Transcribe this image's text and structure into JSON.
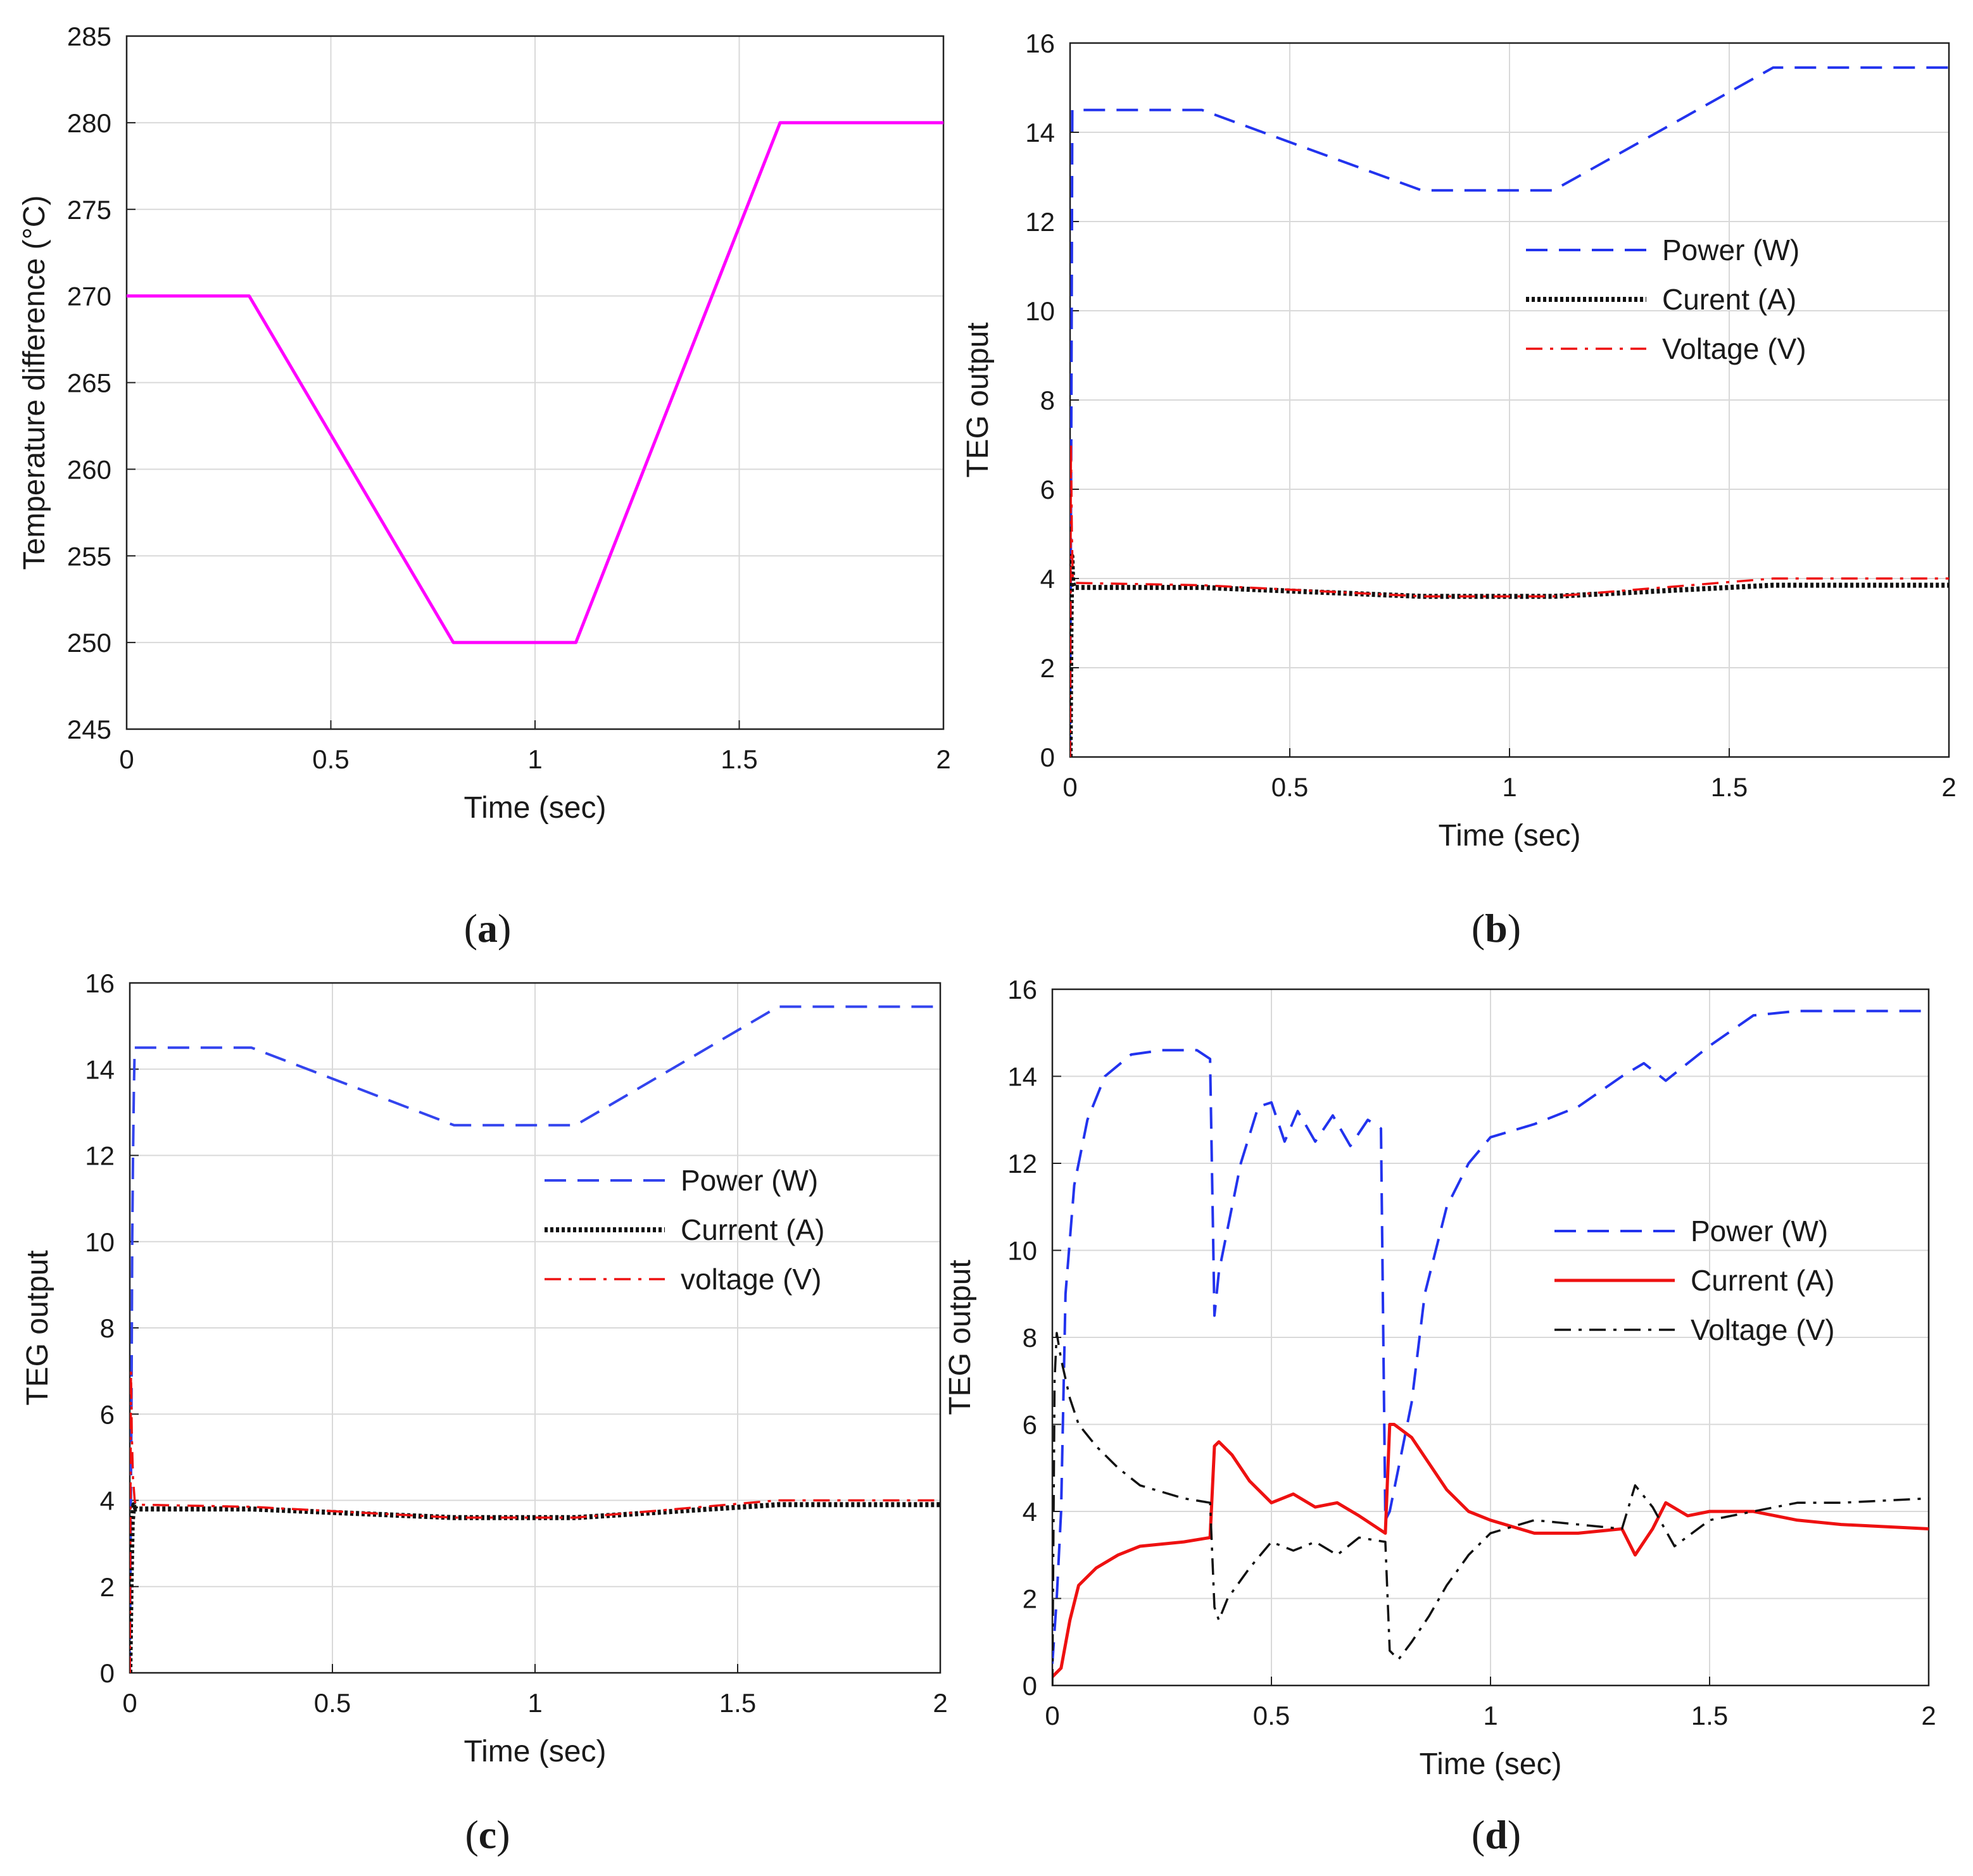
{
  "chart_data": [
    {
      "id": "a",
      "type": "line",
      "caption_letter": "a",
      "title": "",
      "xlabel": "Time (sec)",
      "ylabel": "Temperature difference (°C)",
      "xlim": [
        0,
        2
      ],
      "ylim": [
        245,
        285
      ],
      "xticks": [
        0,
        0.5,
        1,
        1.5,
        2
      ],
      "xtick_labels": [
        "0",
        "0.5",
        "1",
        "1.5",
        "2"
      ],
      "yticks": [
        245,
        250,
        255,
        260,
        265,
        270,
        275,
        280,
        285
      ],
      "ytick_labels": [
        "245",
        "250",
        "255",
        "260",
        "265",
        "270",
        "275",
        "280",
        "285"
      ],
      "grid": true,
      "legend_position": "none",
      "series": [
        {
          "name": "Temperature difference",
          "color": "#ff00ff",
          "style": "solid",
          "x": [
            0,
            0.3,
            0.8,
            1.1,
            1.6,
            2.0
          ],
          "y": [
            270,
            270,
            250,
            250,
            280,
            280
          ]
        }
      ]
    },
    {
      "id": "b",
      "type": "line",
      "caption_letter": "b",
      "title": "",
      "xlabel": "Time (sec)",
      "ylabel": "TEG output",
      "xlim": [
        0,
        2
      ],
      "ylim": [
        0,
        16
      ],
      "xticks": [
        0,
        0.5,
        1,
        1.5,
        2
      ],
      "xtick_labels": [
        "0",
        "0.5",
        "1",
        "1.5",
        "2"
      ],
      "yticks": [
        0,
        2,
        4,
        6,
        8,
        10,
        12,
        14,
        16
      ],
      "ytick_labels": [
        "0",
        "2",
        "4",
        "6",
        "8",
        "10",
        "12",
        "14",
        "16"
      ],
      "grid": true,
      "legend_position": "center-right",
      "series": [
        {
          "name": "Power (W)",
          "color": "#2233ee",
          "style": "dashed",
          "x": [
            0,
            0.003,
            0.005,
            0.01,
            0.3,
            0.8,
            1.1,
            1.6,
            2.0
          ],
          "y": [
            0,
            8,
            14.5,
            14.5,
            14.5,
            12.7,
            12.7,
            15.45,
            15.45
          ]
        },
        {
          "name": "Curent (A)",
          "color": "#111111",
          "style": "dotted",
          "x": [
            0,
            0.002,
            0.004,
            0.006,
            0.01,
            0.3,
            0.8,
            1.1,
            1.6,
            2.0
          ],
          "y": [
            0,
            3,
            4.5,
            3.9,
            3.8,
            3.8,
            3.6,
            3.6,
            3.85,
            3.85
          ]
        },
        {
          "name": "Voltage (V)",
          "color": "#ee1111",
          "style": "dashdot",
          "x": [
            0,
            0.002,
            0.004,
            0.006,
            0.01,
            0.3,
            0.8,
            1.1,
            1.6,
            2.0
          ],
          "y": [
            0,
            7,
            5,
            4,
            3.9,
            3.85,
            3.6,
            3.6,
            4.0,
            4.0
          ]
        }
      ]
    },
    {
      "id": "c",
      "type": "line",
      "caption_letter": "c",
      "title": "",
      "xlabel": "Time (sec)",
      "ylabel": "TEG output",
      "xlim": [
        0,
        2
      ],
      "ylim": [
        0,
        16
      ],
      "xticks": [
        0,
        0.5,
        1,
        1.5,
        2
      ],
      "xtick_labels": [
        "0",
        "0.5",
        "1",
        "1.5",
        "2"
      ],
      "yticks": [
        0,
        2,
        4,
        6,
        8,
        10,
        12,
        14,
        16
      ],
      "ytick_labels": [
        "0",
        "2",
        "4",
        "6",
        "8",
        "10",
        "12",
        "14",
        "16"
      ],
      "grid": true,
      "legend_position": "center-right",
      "series": [
        {
          "name": "Power (W)",
          "color": "#3344ee",
          "style": "dashed",
          "x": [
            0,
            0.004,
            0.006,
            0.008,
            0.01,
            0.012,
            0.015,
            0.3,
            0.8,
            1.1,
            1.6,
            2.0
          ],
          "y": [
            0,
            6,
            10,
            12,
            13.5,
            14.5,
            14.5,
            14.5,
            12.7,
            12.7,
            15.45,
            15.45
          ]
        },
        {
          "name": "Current (A)",
          "color": "#111111",
          "style": "dotted",
          "x": [
            0,
            0.003,
            0.006,
            0.01,
            0.015,
            0.3,
            0.8,
            1.1,
            1.6,
            2.0
          ],
          "y": [
            0,
            2,
            3.5,
            3.9,
            3.8,
            3.8,
            3.6,
            3.6,
            3.9,
            3.9
          ]
        },
        {
          "name": "voltage (V)",
          "color": "#ee1111",
          "style": "dashdot",
          "x": [
            0,
            0.003,
            0.005,
            0.008,
            0.012,
            0.015,
            0.3,
            0.8,
            1.1,
            1.6,
            2.0
          ],
          "y": [
            0,
            7,
            5.5,
            4.5,
            4,
            3.9,
            3.85,
            3.6,
            3.6,
            4.0,
            4.0
          ]
        }
      ]
    },
    {
      "id": "d",
      "type": "line",
      "caption_letter": "d",
      "title": "",
      "xlabel": "Time (sec)",
      "ylabel": "TEG output",
      "xlim": [
        0,
        2
      ],
      "ylim": [
        0,
        16
      ],
      "xticks": [
        0,
        0.5,
        1,
        1.5,
        2
      ],
      "xtick_labels": [
        "0",
        "0.5",
        "1",
        "1.5",
        "2"
      ],
      "yticks": [
        0,
        2,
        4,
        6,
        8,
        10,
        12,
        14,
        16
      ],
      "ytick_labels": [
        "0",
        "2",
        "4",
        "6",
        "8",
        "10",
        "12",
        "14",
        "16"
      ],
      "grid": true,
      "legend_position": "center-right",
      "series": [
        {
          "name": "Power (W)",
          "color": "#2233ee",
          "style": "dashed",
          "x": [
            0,
            0.01,
            0.02,
            0.03,
            0.05,
            0.08,
            0.12,
            0.18,
            0.25,
            0.33,
            0.36,
            0.37,
            0.38,
            0.4,
            0.43,
            0.47,
            0.5,
            0.53,
            0.56,
            0.6,
            0.64,
            0.68,
            0.72,
            0.75,
            0.76,
            0.77,
            0.79,
            0.82,
            0.85,
            0.9,
            0.95,
            1.0,
            1.1,
            1.2,
            1.3,
            1.35,
            1.4,
            1.5,
            1.6,
            1.7,
            2.0
          ],
          "y": [
            0.5,
            2,
            4,
            9,
            11.5,
            13,
            14,
            14.5,
            14.6,
            14.6,
            14.4,
            8.5,
            9.5,
            10.5,
            12,
            13.3,
            13.4,
            12.5,
            13.2,
            12.5,
            13.1,
            12.4,
            13.0,
            12.8,
            3.8,
            4,
            5,
            6.5,
            9,
            11,
            12,
            12.6,
            12.9,
            13.3,
            14,
            14.3,
            13.9,
            14.7,
            15.4,
            15.5,
            15.5
          ]
        },
        {
          "name": "Current (A)",
          "color": "#ee1111",
          "style": "solid",
          "x": [
            0,
            0.02,
            0.04,
            0.06,
            0.1,
            0.15,
            0.2,
            0.3,
            0.36,
            0.37,
            0.38,
            0.41,
            0.45,
            0.5,
            0.55,
            0.6,
            0.65,
            0.7,
            0.76,
            0.77,
            0.78,
            0.82,
            0.86,
            0.9,
            0.95,
            1.0,
            1.1,
            1.2,
            1.3,
            1.33,
            1.37,
            1.4,
            1.45,
            1.5,
            1.6,
            1.7,
            1.8,
            2.0
          ],
          "y": [
            0.2,
            0.4,
            1.5,
            2.3,
            2.7,
            3.0,
            3.2,
            3.3,
            3.4,
            5.5,
            5.6,
            5.3,
            4.7,
            4.2,
            4.4,
            4.1,
            4.2,
            3.9,
            3.5,
            6.0,
            6.0,
            5.7,
            5.1,
            4.5,
            4.0,
            3.8,
            3.5,
            3.5,
            3.6,
            3.0,
            3.6,
            4.2,
            3.9,
            4.0,
            4.0,
            3.8,
            3.7,
            3.6
          ]
        },
        {
          "name": "Voltage (V)",
          "color": "#111111",
          "style": "dashdot",
          "x": [
            0,
            0.005,
            0.01,
            0.02,
            0.04,
            0.06,
            0.1,
            0.15,
            0.2,
            0.3,
            0.36,
            0.37,
            0.38,
            0.4,
            0.45,
            0.5,
            0.55,
            0.6,
            0.65,
            0.7,
            0.76,
            0.77,
            0.79,
            0.82,
            0.86,
            0.9,
            0.95,
            1.0,
            1.1,
            1.2,
            1.3,
            1.33,
            1.37,
            1.42,
            1.5,
            1.6,
            1.7,
            1.8,
            2.0
          ],
          "y": [
            0,
            7,
            8.1,
            7.5,
            6.6,
            6.0,
            5.5,
            5.0,
            4.6,
            4.3,
            4.2,
            1.8,
            1.5,
            2.0,
            2.7,
            3.3,
            3.1,
            3.3,
            3.0,
            3.4,
            3.3,
            0.8,
            0.6,
            1.0,
            1.6,
            2.3,
            3.0,
            3.5,
            3.8,
            3.7,
            3.6,
            4.6,
            4.1,
            3.2,
            3.8,
            4.0,
            4.2,
            4.2,
            4.3
          ]
        }
      ]
    }
  ],
  "captions": [
    "a",
    "b",
    "c",
    "d"
  ],
  "colors": {
    "grid": "#d9d9d9",
    "axis": "#222222",
    "background": "#ffffff"
  }
}
